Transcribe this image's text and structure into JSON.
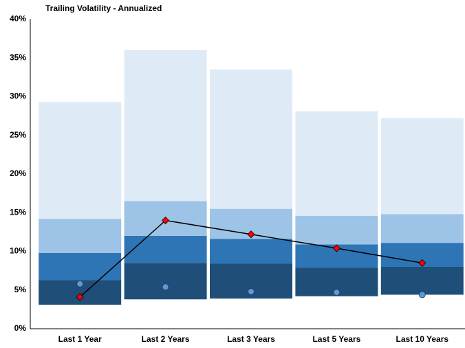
{
  "chart_data": {
    "type": "bar",
    "stacked": true,
    "title": "Trailing Volatility - Annualized",
    "categories": [
      "Last 1 Year",
      "Last 2 Years",
      "Last 3 Years",
      "Last 5 Years",
      "Last 10 Years"
    ],
    "series": [
      {
        "type": "bar",
        "color": "none",
        "values": [
          3.1,
          3.8,
          3.9,
          4.2,
          4.4
        ]
      },
      {
        "type": "bar",
        "color": "#1f4e79",
        "values": [
          3.2,
          4.7,
          4.5,
          3.7,
          3.6
        ]
      },
      {
        "type": "bar",
        "color": "#2e75b6",
        "values": [
          3.5,
          3.5,
          3.2,
          3.0,
          3.1
        ]
      },
      {
        "type": "bar",
        "color": "#9dc3e6",
        "values": [
          4.4,
          4.5,
          3.9,
          3.7,
          3.7
        ]
      },
      {
        "type": "bar",
        "color": "#deebf7",
        "values": [
          15.1,
          19.5,
          18.0,
          13.5,
          12.4
        ]
      },
      {
        "type": "line",
        "color": "#ff0000",
        "values": [
          4.1,
          14.0,
          12.2,
          10.4,
          8.5
        ]
      },
      {
        "type": "scatter",
        "color": "#5b9bd5",
        "values": [
          5.8,
          5.4,
          4.8,
          4.7,
          4.4
        ]
      }
    ],
    "ylim": [
      0,
      40
    ],
    "yticks": [
      {
        "value": 0,
        "label": "0%"
      },
      {
        "value": 5,
        "label": "5%"
      },
      {
        "value": 10,
        "label": "10%"
      },
      {
        "value": 15,
        "label": "15%"
      },
      {
        "value": 20,
        "label": "20%"
      },
      {
        "value": 25,
        "label": "25%"
      },
      {
        "value": 30,
        "label": "30%"
      },
      {
        "value": 35,
        "label": "35%"
      },
      {
        "value": 40,
        "label": "40%"
      }
    ],
    "grid": false
  }
}
